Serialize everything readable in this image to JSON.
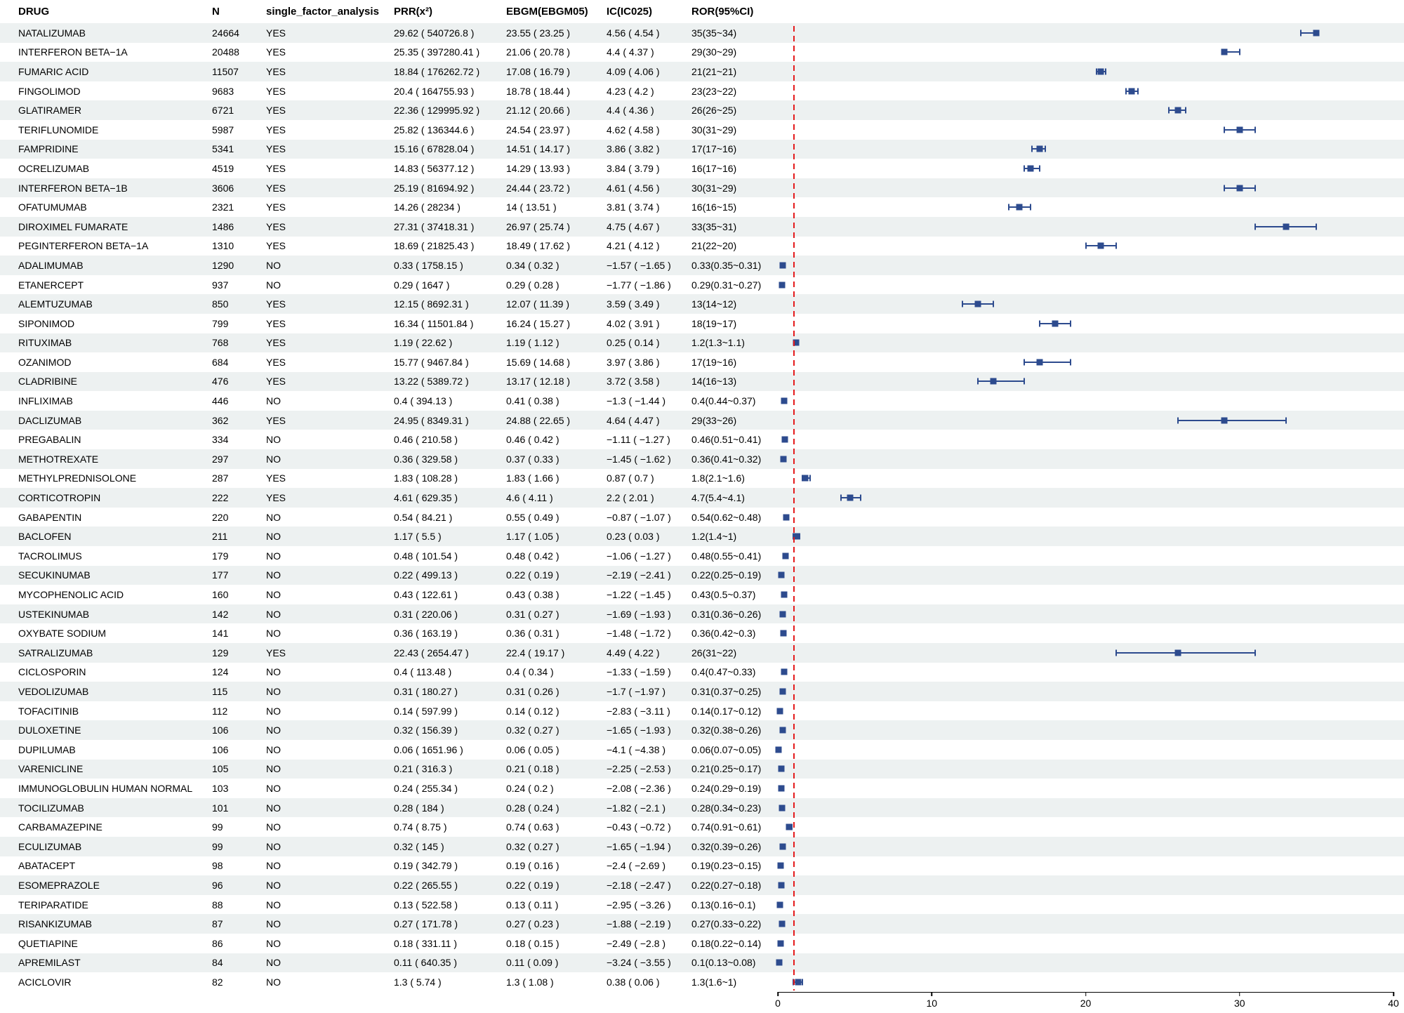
{
  "columns": {
    "drug": "DRUG",
    "n": "N",
    "sfa": "single_factor_analysis",
    "prr": "PRR(x²)",
    "ebgm": "EBGM(EBGM05)",
    "ic": "IC(IC025)",
    "ror": "ROR(95%CI)"
  },
  "chart_data": {
    "type": "scatter",
    "variant": "forest-plot",
    "title": "",
    "xlabel": "",
    "ylabel": "",
    "xlim": [
      0,
      40
    ],
    "x_ticks": [
      0,
      10,
      20,
      30,
      40
    ],
    "grid": false,
    "reference_line": {
      "x": 1,
      "color": "#e41a1c",
      "style": "dashed"
    },
    "marker_color": "#2d4b8e",
    "stripe_color": "#edf1f1",
    "rows": [
      {
        "drug": "NATALIZUMAB",
        "n": "24664",
        "sfa": "YES",
        "prr": "29.62 ( 540726.8 )",
        "ebgm": "23.55 ( 23.25 )",
        "ic": "4.56 ( 4.54 )",
        "ror_text": "35(35~34)",
        "ror": 35,
        "hi": 35,
        "lo": 34
      },
      {
        "drug": "INTERFERON BETA−1A",
        "n": "20488",
        "sfa": "YES",
        "prr": "25.35 ( 397280.41 )",
        "ebgm": "21.06 ( 20.78 )",
        "ic": "4.4 ( 4.37 )",
        "ror_text": "29(30~29)",
        "ror": 29,
        "hi": 30,
        "lo": 29
      },
      {
        "drug": "FUMARIC ACID",
        "n": "11507",
        "sfa": "YES",
        "prr": "18.84 ( 176262.72 )",
        "ebgm": "17.08 ( 16.79 )",
        "ic": "4.09 ( 4.06 )",
        "ror_text": "21(21~21)",
        "ror": 21,
        "hi": 21.3,
        "lo": 20.7
      },
      {
        "drug": "FINGOLIMOD",
        "n": "9683",
        "sfa": "YES",
        "prr": "20.4 ( 164755.93 )",
        "ebgm": "18.78 ( 18.44 )",
        "ic": "4.23 ( 4.2 )",
        "ror_text": "23(23~22)",
        "ror": 23,
        "hi": 23.4,
        "lo": 22.6
      },
      {
        "drug": "GLATIRAMER",
        "n": "6721",
        "sfa": "YES",
        "prr": "22.36 ( 129995.92 )",
        "ebgm": "21.12 ( 20.66 )",
        "ic": "4.4 ( 4.36 )",
        "ror_text": "26(26~25)",
        "ror": 26,
        "hi": 26.5,
        "lo": 25.4
      },
      {
        "drug": "TERIFLUNOMIDE",
        "n": "5987",
        "sfa": "YES",
        "prr": "25.82 ( 136344.6 )",
        "ebgm": "24.54 ( 23.97 )",
        "ic": "4.62 ( 4.58 )",
        "ror_text": "30(31~29)",
        "ror": 30,
        "hi": 31,
        "lo": 29
      },
      {
        "drug": "FAMPRIDINE",
        "n": "5341",
        "sfa": "YES",
        "prr": "15.16 ( 67828.04 )",
        "ebgm": "14.51 ( 14.17 )",
        "ic": "3.86 ( 3.82 )",
        "ror_text": "17(17~16)",
        "ror": 17,
        "hi": 17.4,
        "lo": 16.5
      },
      {
        "drug": "OCRELIZUMAB",
        "n": "4519",
        "sfa": "YES",
        "prr": "14.83 ( 56377.12 )",
        "ebgm": "14.29 ( 13.93 )",
        "ic": "3.84 ( 3.79 )",
        "ror_text": "16(17~16)",
        "ror": 16.4,
        "hi": 17,
        "lo": 16
      },
      {
        "drug": "INTERFERON BETA−1B",
        "n": "3606",
        "sfa": "YES",
        "prr": "25.19 ( 81694.92 )",
        "ebgm": "24.44 ( 23.72 )",
        "ic": "4.61 ( 4.56 )",
        "ror_text": "30(31~29)",
        "ror": 30,
        "hi": 31,
        "lo": 29
      },
      {
        "drug": "OFATUMUMAB",
        "n": "2321",
        "sfa": "YES",
        "prr": "14.26 ( 28234 )",
        "ebgm": "14 ( 13.51 )",
        "ic": "3.81 ( 3.74 )",
        "ror_text": "16(16~15)",
        "ror": 15.7,
        "hi": 16.4,
        "lo": 15
      },
      {
        "drug": "DIROXIMEL FUMARATE",
        "n": "1486",
        "sfa": "YES",
        "prr": "27.31 ( 37418.31 )",
        "ebgm": "26.97 ( 25.74 )",
        "ic": "4.75 ( 4.67 )",
        "ror_text": "33(35~31)",
        "ror": 33,
        "hi": 35,
        "lo": 31
      },
      {
        "drug": "PEGINTERFERON BETA−1A",
        "n": "1310",
        "sfa": "YES",
        "prr": "18.69 ( 21825.43 )",
        "ebgm": "18.49 ( 17.62 )",
        "ic": "4.21 ( 4.12 )",
        "ror_text": "21(22~20)",
        "ror": 21,
        "hi": 22,
        "lo": 20
      },
      {
        "drug": "ADALIMUMAB",
        "n": "1290",
        "sfa": "NO",
        "prr": "0.33 ( 1758.15 )",
        "ebgm": "0.34 ( 0.32 )",
        "ic": "−1.57 ( −1.65 )",
        "ror_text": "0.33(0.35~0.31)",
        "ror": 0.33,
        "hi": 0.35,
        "lo": 0.31
      },
      {
        "drug": "ETANERCEPT",
        "n": "937",
        "sfa": "NO",
        "prr": "0.29 ( 1647 )",
        "ebgm": "0.29 ( 0.28 )",
        "ic": "−1.77 ( −1.86 )",
        "ror_text": "0.29(0.31~0.27)",
        "ror": 0.29,
        "hi": 0.31,
        "lo": 0.27
      },
      {
        "drug": "ALEMTUZUMAB",
        "n": "850",
        "sfa": "YES",
        "prr": "12.15 ( 8692.31 )",
        "ebgm": "12.07 ( 11.39 )",
        "ic": "3.59 ( 3.49 )",
        "ror_text": "13(14~12)",
        "ror": 13,
        "hi": 14,
        "lo": 12
      },
      {
        "drug": "SIPONIMOD",
        "n": "799",
        "sfa": "YES",
        "prr": "16.34 ( 11501.84 )",
        "ebgm": "16.24 ( 15.27 )",
        "ic": "4.02 ( 3.91 )",
        "ror_text": "18(19~17)",
        "ror": 18,
        "hi": 19,
        "lo": 17
      },
      {
        "drug": "RITUXIMAB",
        "n": "768",
        "sfa": "YES",
        "prr": "1.19 ( 22.62 )",
        "ebgm": "1.19 ( 1.12 )",
        "ic": "0.25 ( 0.14 )",
        "ror_text": "1.2(1.3~1.1)",
        "ror": 1.2,
        "hi": 1.3,
        "lo": 1.1
      },
      {
        "drug": "OZANIMOD",
        "n": "684",
        "sfa": "YES",
        "prr": "15.77 ( 9467.84 )",
        "ebgm": "15.69 ( 14.68 )",
        "ic": "3.97 ( 3.86 )",
        "ror_text": "17(19~16)",
        "ror": 17,
        "hi": 19,
        "lo": 16
      },
      {
        "drug": "CLADRIBINE",
        "n": "476",
        "sfa": "YES",
        "prr": "13.22 ( 5389.72 )",
        "ebgm": "13.17 ( 12.18 )",
        "ic": "3.72 ( 3.58 )",
        "ror_text": "14(16~13)",
        "ror": 14,
        "hi": 16,
        "lo": 13
      },
      {
        "drug": "INFLIXIMAB",
        "n": "446",
        "sfa": "NO",
        "prr": "0.4 ( 394.13 )",
        "ebgm": "0.41 ( 0.38 )",
        "ic": "−1.3 ( −1.44 )",
        "ror_text": "0.4(0.44~0.37)",
        "ror": 0.4,
        "hi": 0.44,
        "lo": 0.37
      },
      {
        "drug": "DACLIZUMAB",
        "n": "362",
        "sfa": "YES",
        "prr": "24.95 ( 8349.31 )",
        "ebgm": "24.88 ( 22.65 )",
        "ic": "4.64 ( 4.47 )",
        "ror_text": "29(33~26)",
        "ror": 29,
        "hi": 33,
        "lo": 26
      },
      {
        "drug": "PREGABALIN",
        "n": "334",
        "sfa": "NO",
        "prr": "0.46 ( 210.58 )",
        "ebgm": "0.46 ( 0.42 )",
        "ic": "−1.11 ( −1.27 )",
        "ror_text": "0.46(0.51~0.41)",
        "ror": 0.46,
        "hi": 0.51,
        "lo": 0.41
      },
      {
        "drug": "METHOTREXATE",
        "n": "297",
        "sfa": "NO",
        "prr": "0.36 ( 329.58 )",
        "ebgm": "0.37 ( 0.33 )",
        "ic": "−1.45 ( −1.62 )",
        "ror_text": "0.36(0.41~0.32)",
        "ror": 0.36,
        "hi": 0.41,
        "lo": 0.32
      },
      {
        "drug": "METHYLPREDNISOLONE",
        "n": "287",
        "sfa": "YES",
        "prr": "1.83 ( 108.28 )",
        "ebgm": "1.83 ( 1.66 )",
        "ic": "0.87 ( 0.7 )",
        "ror_text": "1.8(2.1~1.6)",
        "ror": 1.8,
        "hi": 2.1,
        "lo": 1.6
      },
      {
        "drug": "CORTICOTROPIN",
        "n": "222",
        "sfa": "YES",
        "prr": "4.61 ( 629.35 )",
        "ebgm": "4.6 ( 4.11 )",
        "ic": "2.2 ( 2.01 )",
        "ror_text": "4.7(5.4~4.1)",
        "ror": 4.7,
        "hi": 5.4,
        "lo": 4.1
      },
      {
        "drug": "GABAPENTIN",
        "n": "220",
        "sfa": "NO",
        "prr": "0.54 ( 84.21 )",
        "ebgm": "0.55 ( 0.49 )",
        "ic": "−0.87 ( −1.07 )",
        "ror_text": "0.54(0.62~0.48)",
        "ror": 0.54,
        "hi": 0.62,
        "lo": 0.48
      },
      {
        "drug": "BACLOFEN",
        "n": "211",
        "sfa": "NO",
        "prr": "1.17 ( 5.5 )",
        "ebgm": "1.17 ( 1.05 )",
        "ic": "0.23 ( 0.03 )",
        "ror_text": "1.2(1.4~1)",
        "ror": 1.2,
        "hi": 1.4,
        "lo": 1
      },
      {
        "drug": "TACROLIMUS",
        "n": "179",
        "sfa": "NO",
        "prr": "0.48 ( 101.54 )",
        "ebgm": "0.48 ( 0.42 )",
        "ic": "−1.06 ( −1.27 )",
        "ror_text": "0.48(0.55~0.41)",
        "ror": 0.48,
        "hi": 0.55,
        "lo": 0.41
      },
      {
        "drug": "SECUKINUMAB",
        "n": "177",
        "sfa": "NO",
        "prr": "0.22 ( 499.13 )",
        "ebgm": "0.22 ( 0.19 )",
        "ic": "−2.19 ( −2.41 )",
        "ror_text": "0.22(0.25~0.19)",
        "ror": 0.22,
        "hi": 0.25,
        "lo": 0.19
      },
      {
        "drug": "MYCOPHENOLIC ACID",
        "n": "160",
        "sfa": "NO",
        "prr": "0.43 ( 122.61 )",
        "ebgm": "0.43 ( 0.38 )",
        "ic": "−1.22 ( −1.45 )",
        "ror_text": "0.43(0.5~0.37)",
        "ror": 0.43,
        "hi": 0.5,
        "lo": 0.37
      },
      {
        "drug": "USTEKINUMAB",
        "n": "142",
        "sfa": "NO",
        "prr": "0.31 ( 220.06 )",
        "ebgm": "0.31 ( 0.27 )",
        "ic": "−1.69 ( −1.93 )",
        "ror_text": "0.31(0.36~0.26)",
        "ror": 0.31,
        "hi": 0.36,
        "lo": 0.26
      },
      {
        "drug": "OXYBATE SODIUM",
        "n": "141",
        "sfa": "NO",
        "prr": "0.36 ( 163.19 )",
        "ebgm": "0.36 ( 0.31 )",
        "ic": "−1.48 ( −1.72 )",
        "ror_text": "0.36(0.42~0.3)",
        "ror": 0.36,
        "hi": 0.42,
        "lo": 0.3
      },
      {
        "drug": "SATRALIZUMAB",
        "n": "129",
        "sfa": "YES",
        "prr": "22.43 ( 2654.47 )",
        "ebgm": "22.4 ( 19.17 )",
        "ic": "4.49 ( 4.22 )",
        "ror_text": "26(31~22)",
        "ror": 26,
        "hi": 31,
        "lo": 22
      },
      {
        "drug": "CICLOSPORIN",
        "n": "124",
        "sfa": "NO",
        "prr": "0.4 ( 113.48 )",
        "ebgm": "0.4 ( 0.34 )",
        "ic": "−1.33 ( −1.59 )",
        "ror_text": "0.4(0.47~0.33)",
        "ror": 0.4,
        "hi": 0.47,
        "lo": 0.33
      },
      {
        "drug": "VEDOLIZUMAB",
        "n": "115",
        "sfa": "NO",
        "prr": "0.31 ( 180.27 )",
        "ebgm": "0.31 ( 0.26 )",
        "ic": "−1.7 ( −1.97 )",
        "ror_text": "0.31(0.37~0.25)",
        "ror": 0.31,
        "hi": 0.37,
        "lo": 0.25
      },
      {
        "drug": "TOFACITINIB",
        "n": "112",
        "sfa": "NO",
        "prr": "0.14 ( 597.99 )",
        "ebgm": "0.14 ( 0.12 )",
        "ic": "−2.83 ( −3.11 )",
        "ror_text": "0.14(0.17~0.12)",
        "ror": 0.14,
        "hi": 0.17,
        "lo": 0.12
      },
      {
        "drug": "DULOXETINE",
        "n": "106",
        "sfa": "NO",
        "prr": "0.32 ( 156.39 )",
        "ebgm": "0.32 ( 0.27 )",
        "ic": "−1.65 ( −1.93 )",
        "ror_text": "0.32(0.38~0.26)",
        "ror": 0.32,
        "hi": 0.38,
        "lo": 0.26
      },
      {
        "drug": "DUPILUMAB",
        "n": "106",
        "sfa": "NO",
        "prr": "0.06 ( 1651.96 )",
        "ebgm": "0.06 ( 0.05 )",
        "ic": "−4.1 ( −4.38 )",
        "ror_text": "0.06(0.07~0.05)",
        "ror": 0.06,
        "hi": 0.07,
        "lo": 0.05
      },
      {
        "drug": "VARENICLINE",
        "n": "105",
        "sfa": "NO",
        "prr": "0.21 ( 316.3 )",
        "ebgm": "0.21 ( 0.18 )",
        "ic": "−2.25 ( −2.53 )",
        "ror_text": "0.21(0.25~0.17)",
        "ror": 0.21,
        "hi": 0.25,
        "lo": 0.17
      },
      {
        "drug": "IMMUNOGLOBULIN HUMAN NORMAL",
        "n": "103",
        "sfa": "NO",
        "prr": "0.24 ( 255.34 )",
        "ebgm": "0.24 ( 0.2 )",
        "ic": "−2.08 ( −2.36 )",
        "ror_text": "0.24(0.29~0.19)",
        "ror": 0.24,
        "hi": 0.29,
        "lo": 0.19
      },
      {
        "drug": "TOCILIZUMAB",
        "n": "101",
        "sfa": "NO",
        "prr": "0.28 ( 184 )",
        "ebgm": "0.28 ( 0.24 )",
        "ic": "−1.82 ( −2.1 )",
        "ror_text": "0.28(0.34~0.23)",
        "ror": 0.28,
        "hi": 0.34,
        "lo": 0.23
      },
      {
        "drug": "CARBAMAZEPINE",
        "n": "99",
        "sfa": "NO",
        "prr": "0.74 ( 8.75 )",
        "ebgm": "0.74 ( 0.63 )",
        "ic": "−0.43 ( −0.72 )",
        "ror_text": "0.74(0.91~0.61)",
        "ror": 0.74,
        "hi": 0.91,
        "lo": 0.61
      },
      {
        "drug": "ECULIZUMAB",
        "n": "99",
        "sfa": "NO",
        "prr": "0.32 ( 145 )",
        "ebgm": "0.32 ( 0.27 )",
        "ic": "−1.65 ( −1.94 )",
        "ror_text": "0.32(0.39~0.26)",
        "ror": 0.32,
        "hi": 0.39,
        "lo": 0.26
      },
      {
        "drug": "ABATACEPT",
        "n": "98",
        "sfa": "NO",
        "prr": "0.19 ( 342.79 )",
        "ebgm": "0.19 ( 0.16 )",
        "ic": "−2.4 ( −2.69 )",
        "ror_text": "0.19(0.23~0.15)",
        "ror": 0.19,
        "hi": 0.23,
        "lo": 0.15
      },
      {
        "drug": "ESOMEPRAZOLE",
        "n": "96",
        "sfa": "NO",
        "prr": "0.22 ( 265.55 )",
        "ebgm": "0.22 ( 0.19 )",
        "ic": "−2.18 ( −2.47 )",
        "ror_text": "0.22(0.27~0.18)",
        "ror": 0.22,
        "hi": 0.27,
        "lo": 0.18
      },
      {
        "drug": "TERIPARATIDE",
        "n": "88",
        "sfa": "NO",
        "prr": "0.13 ( 522.58 )",
        "ebgm": "0.13 ( 0.11 )",
        "ic": "−2.95 ( −3.26 )",
        "ror_text": "0.13(0.16~0.1)",
        "ror": 0.13,
        "hi": 0.16,
        "lo": 0.1
      },
      {
        "drug": "RISANKIZUMAB",
        "n": "87",
        "sfa": "NO",
        "prr": "0.27 ( 171.78 )",
        "ebgm": "0.27 ( 0.23 )",
        "ic": "−1.88 ( −2.19 )",
        "ror_text": "0.27(0.33~0.22)",
        "ror": 0.27,
        "hi": 0.33,
        "lo": 0.22
      },
      {
        "drug": "QUETIAPINE",
        "n": "86",
        "sfa": "NO",
        "prr": "0.18 ( 331.11 )",
        "ebgm": "0.18 ( 0.15 )",
        "ic": "−2.49 ( −2.8 )",
        "ror_text": "0.18(0.22~0.14)",
        "ror": 0.18,
        "hi": 0.22,
        "lo": 0.14
      },
      {
        "drug": "APREMILAST",
        "n": "84",
        "sfa": "NO",
        "prr": "0.11 ( 640.35 )",
        "ebgm": "0.11 ( 0.09 )",
        "ic": "−3.24 ( −3.55 )",
        "ror_text": "0.1(0.13~0.08)",
        "ror": 0.1,
        "hi": 0.13,
        "lo": 0.08
      },
      {
        "drug": "ACICLOVIR",
        "n": "82",
        "sfa": "NO",
        "prr": "1.3 ( 5.74 )",
        "ebgm": "1.3 ( 1.08 )",
        "ic": "0.38 ( 0.06 )",
        "ror_text": "1.3(1.6~1)",
        "ror": 1.3,
        "hi": 1.6,
        "lo": 1
      }
    ]
  }
}
